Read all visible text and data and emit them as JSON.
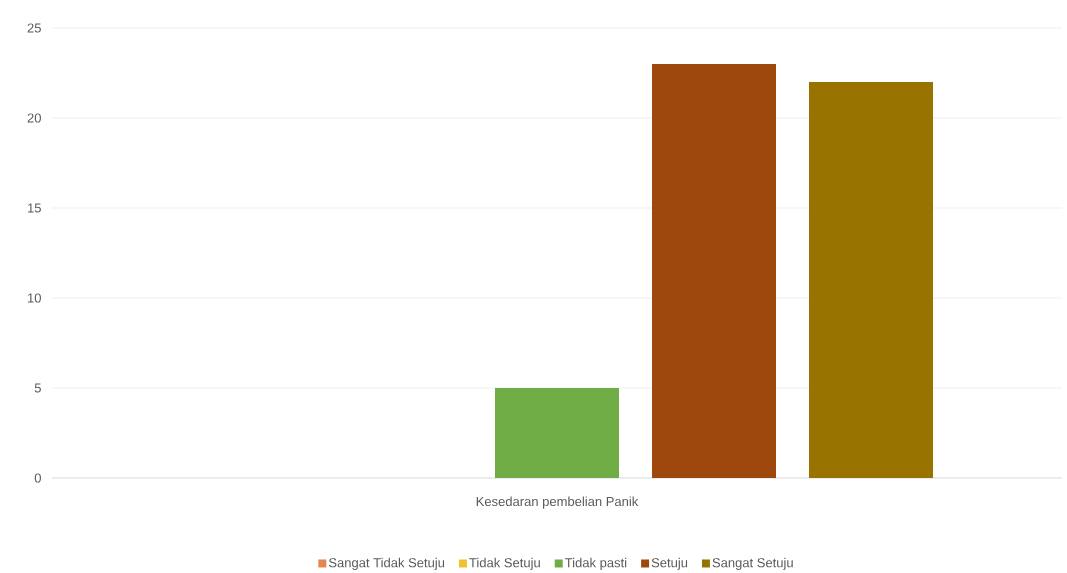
{
  "chart_data": {
    "type": "bar",
    "categories": [
      "Kesedaran pembelian Panik"
    ],
    "series": [
      {
        "name": "Sangat Tidak Setuju",
        "color": "#e0884f",
        "values": [
          0
        ]
      },
      {
        "name": "Tidak Setuju",
        "color": "#f2c12e",
        "values": [
          0
        ]
      },
      {
        "name": "Tidak pasti",
        "color": "#70ad47",
        "values": [
          5
        ]
      },
      {
        "name": "Setuju",
        "color": "#9e480e",
        "values": [
          23
        ]
      },
      {
        "name": "Sangat Setuju",
        "color": "#997300",
        "values": [
          22
        ]
      }
    ],
    "ylim": [
      0,
      25
    ],
    "yticks": [
      0,
      5,
      10,
      15,
      20,
      25
    ],
    "grid": "y",
    "legend": "bottom"
  }
}
